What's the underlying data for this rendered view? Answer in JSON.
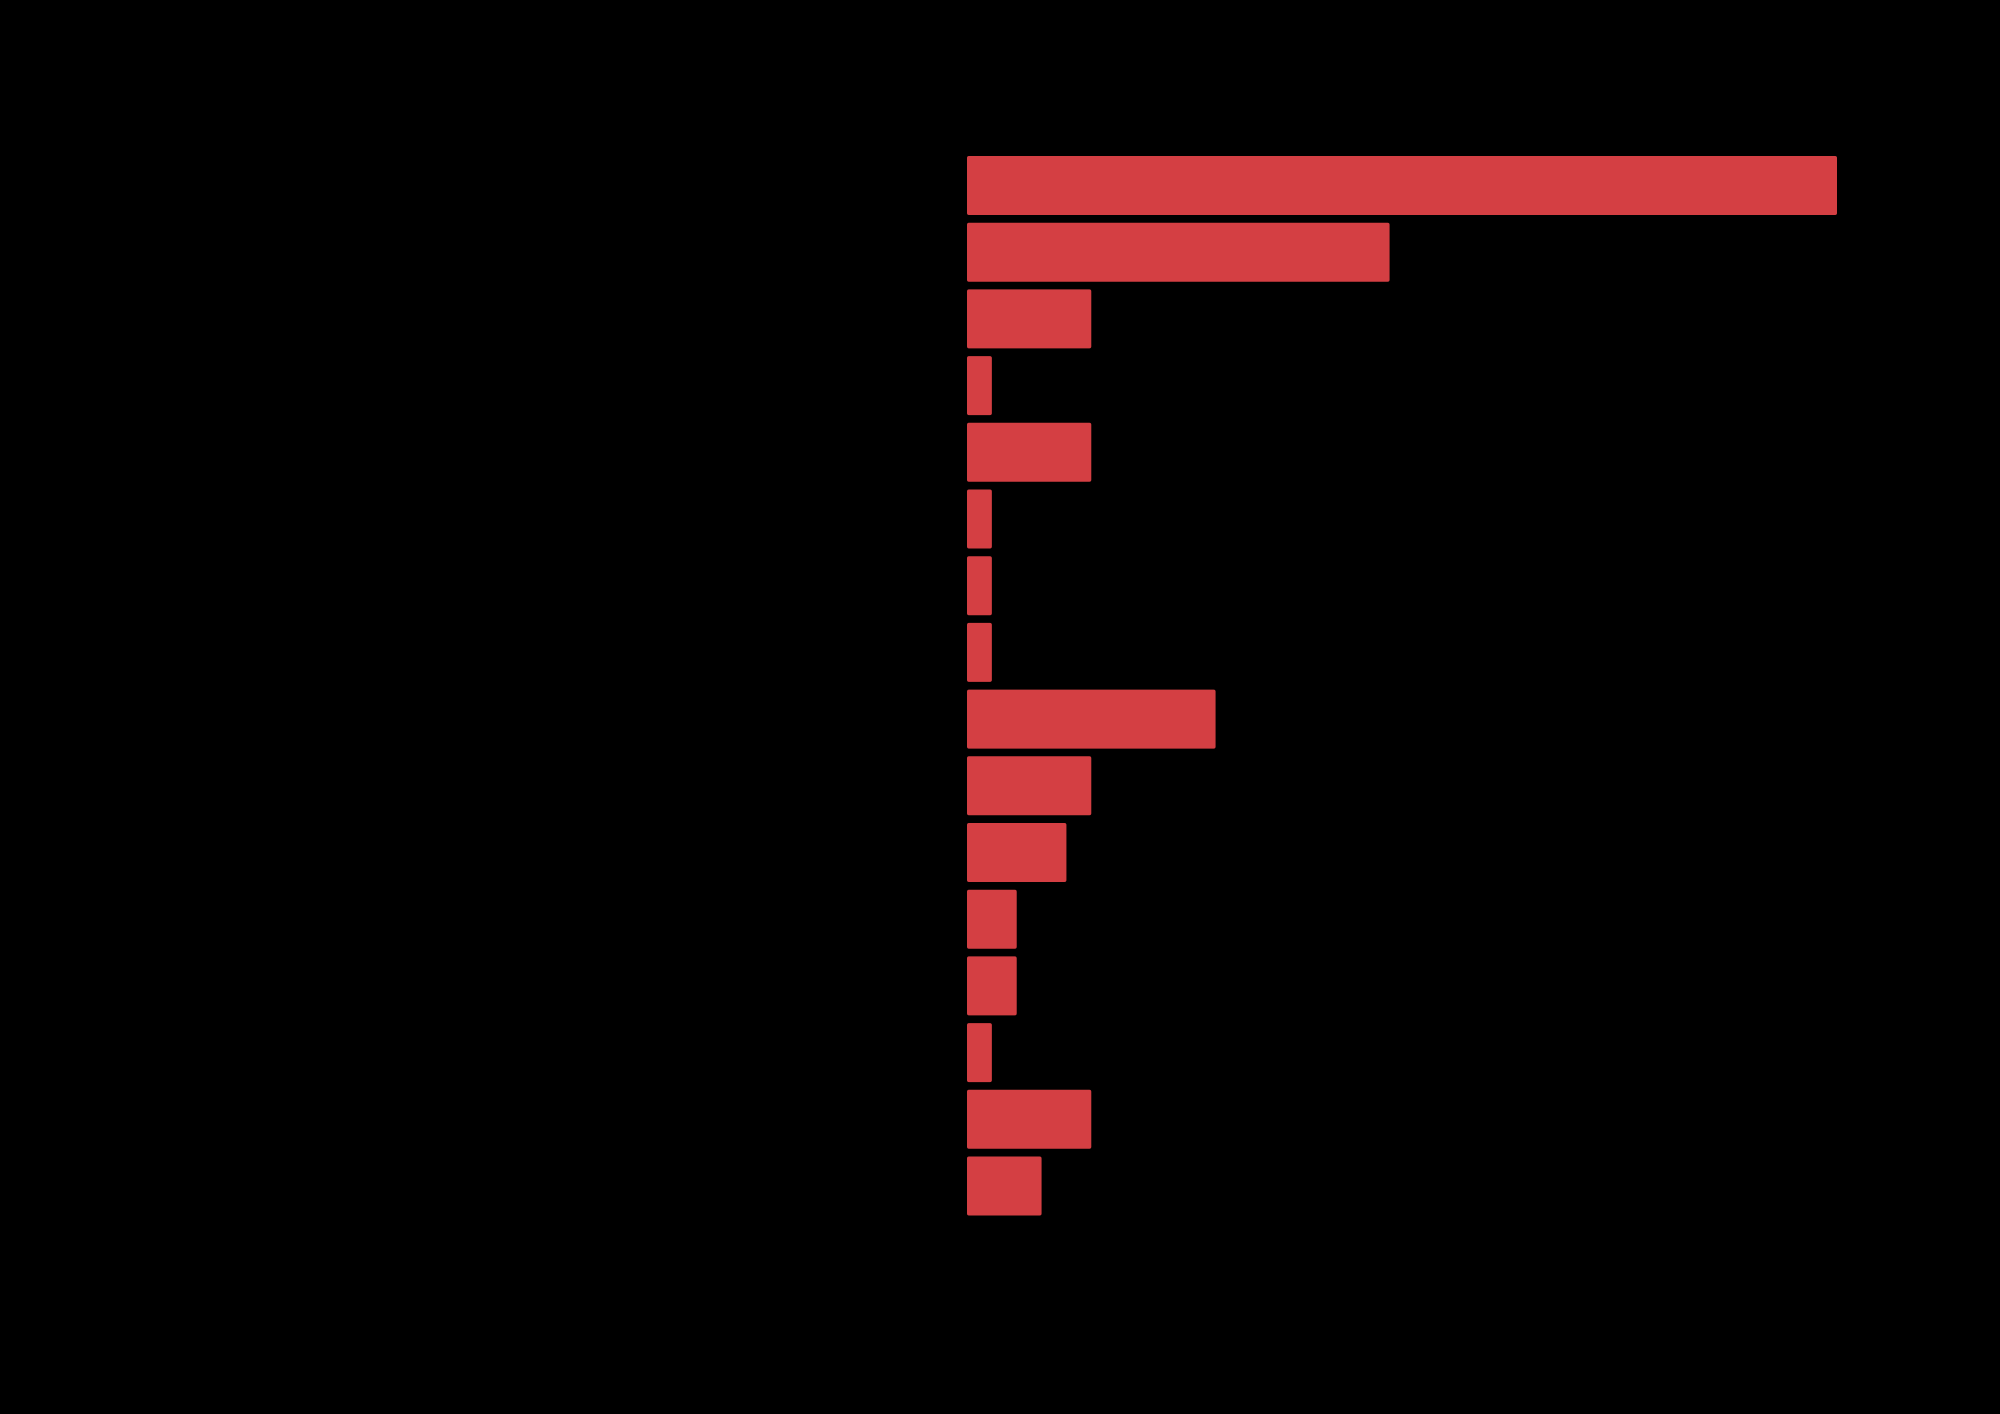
{
  "chart_data": {
    "type": "bar",
    "orientation": "horizontal",
    "categories": [
      null,
      null,
      null,
      null,
      null,
      null,
      null,
      null,
      null,
      null,
      null,
      null,
      null,
      null,
      null,
      null
    ],
    "values": [
      35,
      17,
      5,
      1,
      5,
      1,
      1,
      1,
      10,
      5,
      4,
      2,
      2,
      1,
      5,
      3
    ],
    "color": "#d43f43",
    "background": "#000000"
  }
}
